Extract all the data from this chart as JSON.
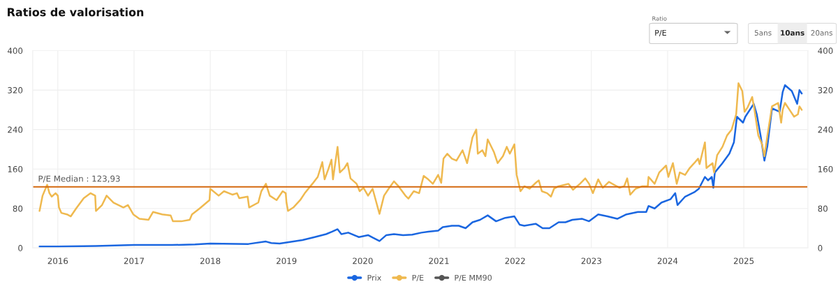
{
  "chart_data": {
    "type": "line",
    "title": "Ratios de valorisation",
    "annotations": [
      "Ratio",
      "P/E",
      "5ans",
      "10ans",
      "20ans"
    ],
    "xlim": [
      2015.67,
      2025.84
    ],
    "xticks": [
      2016,
      2017,
      2018,
      2019,
      2020,
      2021,
      2022,
      2023,
      2024,
      2025
    ],
    "ylim": [
      0,
      400
    ],
    "yticks": [
      0,
      80,
      160,
      240,
      320,
      400
    ],
    "y2lim": [
      0,
      400
    ],
    "y2ticks": [
      0,
      80,
      160,
      240,
      320,
      400
    ],
    "grid": true,
    "legend": "bottom",
    "ref_lines": [
      {
        "axis": "y",
        "value": 123.93,
        "label": "P/E Median : 123,93",
        "color": "#d4690f"
      }
    ],
    "series": [
      {
        "name": "Prix",
        "color": "#1a66e0",
        "x": [
          2015.76,
          2016.0,
          2016.5,
          2017.0,
          2017.5,
          2017.8,
          2018.0,
          2018.5,
          2018.73,
          2018.8,
          2018.91,
          2019.0,
          2019.21,
          2019.37,
          2019.52,
          2019.6,
          2019.67,
          2019.72,
          2019.81,
          2019.95,
          2020.07,
          2020.13,
          2020.22,
          2020.31,
          2020.41,
          2020.53,
          2020.65,
          2020.77,
          2020.86,
          2020.99,
          2021.05,
          2021.17,
          2021.26,
          2021.35,
          2021.44,
          2021.54,
          2021.64,
          2021.75,
          2021.87,
          2021.99,
          2022.06,
          2022.12,
          2022.27,
          2022.36,
          2022.45,
          2022.57,
          2022.66,
          2022.75,
          2022.88,
          2022.97,
          2023.09,
          2023.21,
          2023.34,
          2023.46,
          2023.61,
          2023.72,
          2023.75,
          2023.83,
          2023.92,
          2024.04,
          2024.1,
          2024.13,
          2024.23,
          2024.35,
          2024.41,
          2024.49,
          2024.53,
          2024.58,
          2024.6,
          2024.62,
          2024.72,
          2024.81,
          2024.87,
          2024.91,
          2024.99,
          2025.02,
          2025.13,
          2025.17,
          2025.22,
          2025.27,
          2025.31,
          2025.37,
          2025.47,
          2025.51,
          2025.54,
          2025.63,
          2025.7,
          2025.73,
          2025.76
        ],
        "values": [
          3,
          3,
          4,
          6,
          6,
          7,
          9,
          8,
          13,
          10,
          9,
          11,
          16,
          22,
          28,
          33,
          38,
          28,
          31,
          22,
          26,
          21,
          14,
          26,
          28,
          26,
          27,
          31,
          33,
          35,
          42,
          45,
          45,
          40,
          52,
          57,
          66,
          54,
          61,
          64,
          47,
          45,
          49,
          40,
          40,
          52,
          52,
          57,
          59,
          54,
          68,
          64,
          59,
          68,
          73,
          73,
          85,
          80,
          92,
          99,
          111,
          87,
          104,
          113,
          120,
          144,
          137,
          144,
          122,
          153,
          172,
          191,
          214,
          266,
          254,
          266,
          292,
          271,
          228,
          177,
          207,
          283,
          276,
          316,
          330,
          318,
          292,
          320,
          313
        ]
      },
      {
        "name": "P/E",
        "color": "#efb94f",
        "x": [
          2015.76,
          2015.8,
          2015.86,
          2015.89,
          2015.92,
          2015.97,
          2016.0,
          2016.015,
          2016.046,
          2016.12,
          2016.17,
          2016.24,
          2016.34,
          2016.43,
          2016.49,
          2016.5,
          2016.58,
          2016.64,
          2016.73,
          2016.86,
          2016.92,
          2016.99,
          2017.07,
          2017.19,
          2017.25,
          2017.37,
          2017.48,
          2017.51,
          2017.62,
          2017.73,
          2017.76,
          2017.86,
          2017.99,
          2018.0,
          2018.11,
          2018.18,
          2018.29,
          2018.35,
          2018.38,
          2018.49,
          2018.51,
          2018.63,
          2018.67,
          2018.73,
          2018.78,
          2018.87,
          2018.95,
          2018.99,
          2019.0,
          2019.02,
          2019.09,
          2019.18,
          2019.24,
          2019.34,
          2019.41,
          2019.47,
          2019.5,
          2019.55,
          2019.59,
          2019.61,
          2019.67,
          2019.7,
          2019.76,
          2019.8,
          2019.84,
          2019.92,
          2019.96,
          2020.01,
          2020.07,
          2020.13,
          2020.22,
          2020.28,
          2020.34,
          2020.41,
          2020.47,
          2020.56,
          2020.6,
          2020.67,
          2020.74,
          2020.8,
          2020.86,
          2020.92,
          2020.99,
          2021.03,
          2021.06,
          2021.11,
          2021.17,
          2021.23,
          2021.31,
          2021.37,
          2021.44,
          2021.49,
          2021.51,
          2021.57,
          2021.61,
          2021.64,
          2021.72,
          2021.77,
          2021.84,
          2021.89,
          2021.93,
          2021.99,
          2022.02,
          2022.07,
          2022.12,
          2022.19,
          2022.27,
          2022.31,
          2022.35,
          2022.42,
          2022.47,
          2022.51,
          2022.57,
          2022.7,
          2022.76,
          2022.85,
          2022.92,
          2022.97,
          2023.02,
          2023.09,
          2023.15,
          2023.23,
          2023.31,
          2023.37,
          2023.43,
          2023.47,
          2023.51,
          2023.58,
          2023.67,
          2023.74,
          2023.75,
          2023.83,
          2023.89,
          2023.98,
          2024.01,
          2024.07,
          2024.12,
          2024.16,
          2024.23,
          2024.29,
          2024.35,
          2024.4,
          2024.42,
          2024.49,
          2024.51,
          2024.59,
          2024.61,
          2024.65,
          2024.72,
          2024.78,
          2024.84,
          2024.9,
          2024.93,
          2024.98,
          2025.01,
          2025.05,
          2025.11,
          2025.14,
          2025.19,
          2025.24,
          2025.27,
          2025.31,
          2025.37,
          2025.45,
          2025.49,
          2025.51,
          2025.54,
          2025.6,
          2025.66,
          2025.71,
          2025.73,
          2025.76
        ],
        "values": [
          75,
          106,
          128,
          111,
          104,
          111,
          106,
          82,
          71,
          68,
          64,
          80,
          101,
          111,
          106,
          75,
          87,
          106,
          92,
          82,
          87,
          68,
          59,
          57,
          73,
          68,
          66,
          54,
          54,
          57,
          68,
          80,
          97,
          120,
          106,
          115,
          108,
          111,
          101,
          104,
          82,
          92,
          115,
          130,
          106,
          97,
          115,
          111,
          92,
          75,
          82,
          97,
          111,
          130,
          144,
          174,
          139,
          160,
          179,
          139,
          205,
          153,
          162,
          172,
          141,
          130,
          115,
          122,
          106,
          120,
          69,
          106,
          120,
          135,
          125,
          106,
          100,
          115,
          111,
          146,
          139,
          130,
          148,
          132,
          181,
          191,
          181,
          177,
          198,
          172,
          224,
          240,
          191,
          198,
          186,
          220,
          195,
          172,
          186,
          205,
          191,
          210,
          148,
          115,
          125,
          120,
          132,
          137,
          115,
          111,
          104,
          120,
          125,
          130,
          118,
          130,
          141,
          130,
          111,
          139,
          122,
          134,
          127,
          122,
          125,
          141,
          108,
          120,
          125,
          125,
          144,
          130,
          153,
          167,
          144,
          172,
          130,
          153,
          148,
          162,
          172,
          181,
          170,
          214,
          162,
          172,
          153,
          188,
          205,
          228,
          240,
          271,
          334,
          318,
          276,
          285,
          306,
          280,
          228,
          210,
          186,
          228,
          287,
          294,
          254,
          280,
          294,
          280,
          266,
          271,
          287,
          280
        ]
      },
      {
        "name": "P/E MM90",
        "color": "#555555"
      }
    ]
  }
}
